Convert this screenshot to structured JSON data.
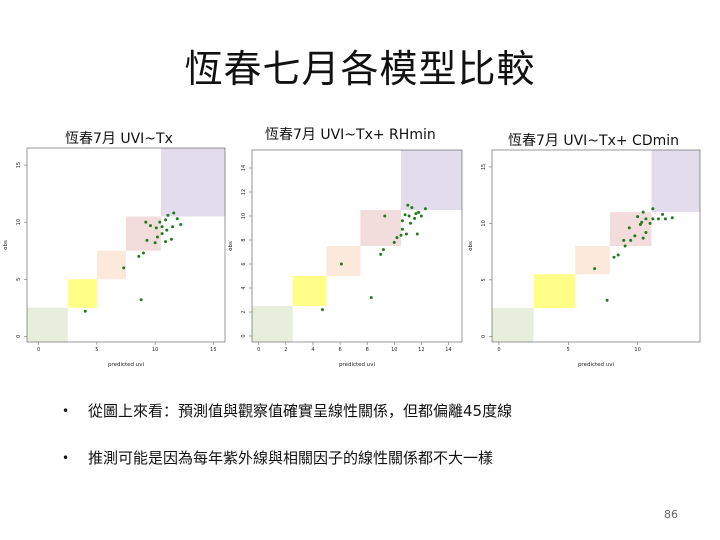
{
  "slide": {
    "title": "恆春七月各模型比較",
    "bullets": [
      "從圖上來看：預測值與觀察值確實呈線性關係，但都偏離45度線",
      "推測可能是因為每年紫外線與相關因子的線性關係都不大一樣"
    ],
    "bullet_marker": "•",
    "page_number": "86"
  },
  "colors": {
    "points": "#1f7a1f",
    "band_1": "#e8eedc",
    "band_2": "#ffff88",
    "band_3": "#fde9dc",
    "band_4": "#f3dcdc",
    "band_5": "#e2dcec"
  },
  "chart_data": [
    {
      "type": "scatter",
      "title": "恆春7月 UVI~Tx",
      "xlabel": "predicted uvi",
      "ylabel": "obs",
      "xlim": [
        -1,
        16
      ],
      "ylim": [
        -0.5,
        16.5
      ],
      "xticks": [
        0,
        5,
        10,
        15
      ],
      "yticks": [
        0,
        5,
        10,
        15
      ],
      "background_bands": [
        [
          -1,
          2.5
        ],
        [
          2.5,
          5
        ],
        [
          5,
          7.5
        ],
        [
          7.5,
          10.5
        ],
        [
          10.5,
          16.5
        ]
      ],
      "points": [
        {
          "x": 4.0,
          "y": 2.2
        },
        {
          "x": 8.8,
          "y": 3.2
        },
        {
          "x": 7.3,
          "y": 6.0
        },
        {
          "x": 8.6,
          "y": 7.0
        },
        {
          "x": 9.0,
          "y": 7.3
        },
        {
          "x": 9.3,
          "y": 8.4
        },
        {
          "x": 10.0,
          "y": 8.2
        },
        {
          "x": 10.2,
          "y": 8.7
        },
        {
          "x": 10.6,
          "y": 9.0
        },
        {
          "x": 10.9,
          "y": 8.3
        },
        {
          "x": 11.4,
          "y": 8.5
        },
        {
          "x": 11.0,
          "y": 9.3
        },
        {
          "x": 9.6,
          "y": 9.7
        },
        {
          "x": 10.1,
          "y": 9.5
        },
        {
          "x": 10.4,
          "y": 10.0
        },
        {
          "x": 10.9,
          "y": 10.2
        },
        {
          "x": 11.5,
          "y": 9.6
        },
        {
          "x": 11.9,
          "y": 10.3
        },
        {
          "x": 11.1,
          "y": 10.6
        },
        {
          "x": 11.6,
          "y": 10.8
        },
        {
          "x": 9.2,
          "y": 10.0
        },
        {
          "x": 10.6,
          "y": 9.6
        },
        {
          "x": 12.2,
          "y": 9.8
        }
      ]
    },
    {
      "type": "scatter",
      "title": "恆春7月 UVI~Tx+ RHmin",
      "xlabel": "predicted uvi",
      "ylabel": "obs",
      "xlim": [
        -0.5,
        15
      ],
      "ylim": [
        -0.5,
        15.5
      ],
      "xticks": [
        0,
        2,
        4,
        6,
        8,
        10,
        12,
        14
      ],
      "yticks": [
        0,
        2,
        4,
        6,
        8,
        10,
        12,
        14
      ],
      "background_bands": [
        [
          -0.5,
          2.5
        ],
        [
          2.5,
          5
        ],
        [
          5,
          7.5
        ],
        [
          7.5,
          10.5
        ],
        [
          10.5,
          15.5
        ]
      ],
      "points": [
        {
          "x": 4.7,
          "y": 2.2
        },
        {
          "x": 8.3,
          "y": 3.2
        },
        {
          "x": 6.1,
          "y": 6.0
        },
        {
          "x": 9.0,
          "y": 6.8
        },
        {
          "x": 9.2,
          "y": 7.2
        },
        {
          "x": 10.0,
          "y": 7.8
        },
        {
          "x": 10.2,
          "y": 8.2
        },
        {
          "x": 10.5,
          "y": 8.4
        },
        {
          "x": 10.9,
          "y": 8.5
        },
        {
          "x": 10.6,
          "y": 8.9
        },
        {
          "x": 11.7,
          "y": 8.5
        },
        {
          "x": 11.2,
          "y": 9.4
        },
        {
          "x": 9.3,
          "y": 10.0
        },
        {
          "x": 10.6,
          "y": 9.6
        },
        {
          "x": 11.1,
          "y": 10.0
        },
        {
          "x": 11.5,
          "y": 9.8
        },
        {
          "x": 11.8,
          "y": 10.3
        },
        {
          "x": 11.3,
          "y": 10.7
        },
        {
          "x": 11.6,
          "y": 10.2
        },
        {
          "x": 12.0,
          "y": 10.0
        },
        {
          "x": 10.8,
          "y": 10.1
        },
        {
          "x": 11.0,
          "y": 10.9
        },
        {
          "x": 12.3,
          "y": 10.6
        }
      ]
    },
    {
      "type": "scatter",
      "title": "恆春7月 UVI~Tx+ CDmin",
      "xlabel": "predicted uvi",
      "ylabel": "obs",
      "xlim": [
        -0.5,
        14.5
      ],
      "ylim": [
        -0.5,
        16.5
      ],
      "xticks": [
        0,
        5,
        10
      ],
      "yticks": [
        0,
        5,
        10,
        15
      ],
      "background_bands": [
        [
          -0.5,
          2.5
        ],
        [
          2.5,
          5.5
        ],
        [
          5.5,
          8
        ],
        [
          8,
          11
        ],
        [
          11,
          16.5
        ]
      ],
      "points": [
        {
          "x": 7.8,
          "y": 3.2
        },
        {
          "x": 6.9,
          "y": 6.0
        },
        {
          "x": 8.3,
          "y": 7.0
        },
        {
          "x": 8.6,
          "y": 7.2
        },
        {
          "x": 9.1,
          "y": 8.0
        },
        {
          "x": 9.0,
          "y": 8.5
        },
        {
          "x": 9.5,
          "y": 8.5
        },
        {
          "x": 9.8,
          "y": 8.9
        },
        {
          "x": 10.4,
          "y": 8.7
        },
        {
          "x": 10.6,
          "y": 9.2
        },
        {
          "x": 9.4,
          "y": 9.6
        },
        {
          "x": 10.2,
          "y": 9.9
        },
        {
          "x": 10.6,
          "y": 10.4
        },
        {
          "x": 10.9,
          "y": 10.0
        },
        {
          "x": 11.1,
          "y": 10.4
        },
        {
          "x": 11.5,
          "y": 10.4
        },
        {
          "x": 12.0,
          "y": 10.4
        },
        {
          "x": 12.5,
          "y": 10.5
        },
        {
          "x": 10.0,
          "y": 10.6
        },
        {
          "x": 10.4,
          "y": 11.0
        },
        {
          "x": 11.8,
          "y": 10.8
        },
        {
          "x": 11.1,
          "y": 11.3
        },
        {
          "x": 10.3,
          "y": 10.1
        }
      ]
    }
  ]
}
